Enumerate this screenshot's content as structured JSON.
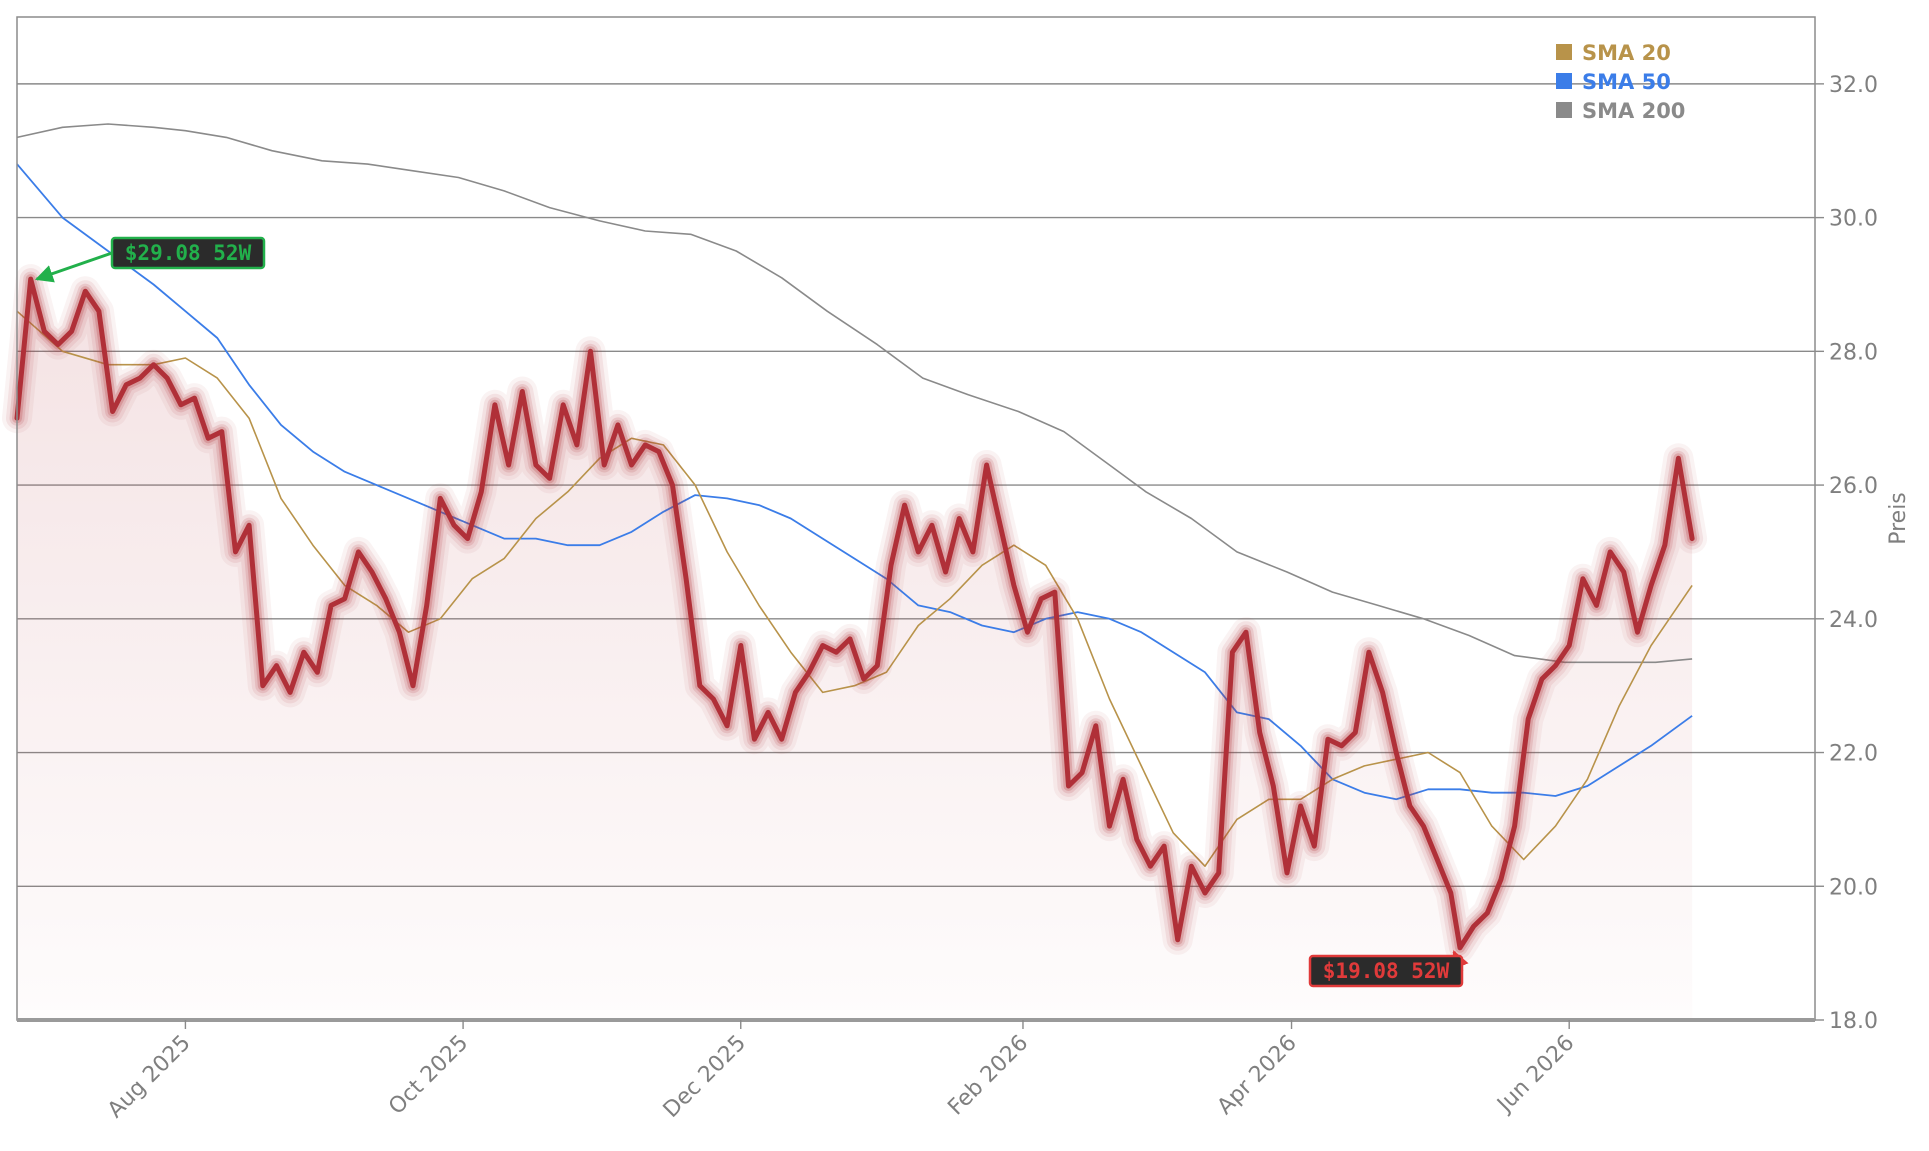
{
  "chart_data": {
    "type": "line",
    "title": "",
    "xlabel": "",
    "ylabel": "Preis",
    "ylim": [
      18.0,
      33.0
    ],
    "xlim": [
      "2025-06-25",
      "2026-07-25"
    ],
    "y_ticks": [
      "18.0",
      "20.0",
      "22.0",
      "24.0",
      "26.0",
      "28.0",
      "30.0",
      "32.0"
    ],
    "x_ticks": [
      {
        "date": "2025-08-01",
        "label": "Aug 2025"
      },
      {
        "date": "2025-10-01",
        "label": "Oct 2025"
      },
      {
        "date": "2025-12-01",
        "label": "Dec 2025"
      },
      {
        "date": "2026-02-01",
        "label": "Feb 2026"
      },
      {
        "date": "2026-04-01",
        "label": "Apr 2026"
      },
      {
        "date": "2026-06-01",
        "label": "Jun 2026"
      }
    ],
    "grid": "horizontal",
    "legend_position": "top-right",
    "legend": [
      {
        "name": "SMA 20",
        "color": "#b8934a"
      },
      {
        "name": "SMA 50",
        "color": "#3b7de8"
      },
      {
        "name": "SMA 200",
        "color": "#8a8a8a"
      }
    ],
    "price_color": "#b03038",
    "annotations": [
      {
        "text": "$29.08 52W",
        "date": "2025-06-28",
        "value": 29.08,
        "kind": "high",
        "color": "#22b04b"
      },
      {
        "text": "$19.08 52W",
        "date": "2026-05-08",
        "value": 19.08,
        "kind": "low",
        "color": "#e03a3a"
      }
    ],
    "series": [
      {
        "name": "Price",
        "points": [
          [
            "2025-06-25",
            27.0
          ],
          [
            "2025-06-28",
            29.08
          ],
          [
            "2025-07-01",
            28.3
          ],
          [
            "2025-07-04",
            28.1
          ],
          [
            "2025-07-07",
            28.3
          ],
          [
            "2025-07-10",
            28.9
          ],
          [
            "2025-07-13",
            28.6
          ],
          [
            "2025-07-16",
            27.1
          ],
          [
            "2025-07-19",
            27.5
          ],
          [
            "2025-07-22",
            27.6
          ],
          [
            "2025-07-25",
            27.8
          ],
          [
            "2025-07-28",
            27.6
          ],
          [
            "2025-07-31",
            27.2
          ],
          [
            "2025-08-03",
            27.3
          ],
          [
            "2025-08-06",
            26.7
          ],
          [
            "2025-08-09",
            26.8
          ],
          [
            "2025-08-12",
            25.0
          ],
          [
            "2025-08-15",
            25.4
          ],
          [
            "2025-08-18",
            23.0
          ],
          [
            "2025-08-21",
            23.3
          ],
          [
            "2025-08-24",
            22.9
          ],
          [
            "2025-08-27",
            23.5
          ],
          [
            "2025-08-30",
            23.2
          ],
          [
            "2025-09-02",
            24.2
          ],
          [
            "2025-09-05",
            24.3
          ],
          [
            "2025-09-08",
            25.0
          ],
          [
            "2025-09-11",
            24.7
          ],
          [
            "2025-09-14",
            24.3
          ],
          [
            "2025-09-17",
            23.8
          ],
          [
            "2025-09-20",
            23.0
          ],
          [
            "2025-09-23",
            24.2
          ],
          [
            "2025-09-26",
            25.8
          ],
          [
            "2025-09-29",
            25.4
          ],
          [
            "2025-10-02",
            25.2
          ],
          [
            "2025-10-05",
            25.9
          ],
          [
            "2025-10-08",
            27.2
          ],
          [
            "2025-10-11",
            26.3
          ],
          [
            "2025-10-14",
            27.4
          ],
          [
            "2025-10-17",
            26.3
          ],
          [
            "2025-10-20",
            26.1
          ],
          [
            "2025-10-23",
            27.2
          ],
          [
            "2025-10-26",
            26.6
          ],
          [
            "2025-10-29",
            28.0
          ],
          [
            "2025-11-01",
            26.3
          ],
          [
            "2025-11-04",
            26.9
          ],
          [
            "2025-11-07",
            26.3
          ],
          [
            "2025-11-10",
            26.6
          ],
          [
            "2025-11-13",
            26.5
          ],
          [
            "2025-11-16",
            26.0
          ],
          [
            "2025-11-19",
            24.6
          ],
          [
            "2025-11-22",
            23.0
          ],
          [
            "2025-11-25",
            22.8
          ],
          [
            "2025-11-28",
            22.4
          ],
          [
            "2025-12-01",
            23.6
          ],
          [
            "2025-12-04",
            22.2
          ],
          [
            "2025-12-07",
            22.6
          ],
          [
            "2025-12-10",
            22.2
          ],
          [
            "2025-12-13",
            22.9
          ],
          [
            "2025-12-16",
            23.2
          ],
          [
            "2025-12-19",
            23.6
          ],
          [
            "2025-12-22",
            23.5
          ],
          [
            "2025-12-25",
            23.7
          ],
          [
            "2025-12-28",
            23.1
          ],
          [
            "2025-12-31",
            23.3
          ],
          [
            "2026-01-03",
            24.8
          ],
          [
            "2026-01-06",
            25.7
          ],
          [
            "2026-01-09",
            25.0
          ],
          [
            "2026-01-12",
            25.4
          ],
          [
            "2026-01-15",
            24.7
          ],
          [
            "2026-01-18",
            25.5
          ],
          [
            "2026-01-21",
            25.0
          ],
          [
            "2026-01-24",
            26.3
          ],
          [
            "2026-01-27",
            25.4
          ],
          [
            "2026-01-30",
            24.5
          ],
          [
            "2026-02-02",
            23.8
          ],
          [
            "2026-02-05",
            24.3
          ],
          [
            "2026-02-08",
            24.4
          ],
          [
            "2026-02-11",
            21.5
          ],
          [
            "2026-02-14",
            21.7
          ],
          [
            "2026-02-17",
            22.4
          ],
          [
            "2026-02-20",
            20.9
          ],
          [
            "2026-02-23",
            21.6
          ],
          [
            "2026-02-26",
            20.7
          ],
          [
            "2026-03-01",
            20.3
          ],
          [
            "2026-03-04",
            20.6
          ],
          [
            "2026-03-07",
            19.2
          ],
          [
            "2026-03-10",
            20.3
          ],
          [
            "2026-03-13",
            19.9
          ],
          [
            "2026-03-16",
            20.2
          ],
          [
            "2026-03-19",
            23.5
          ],
          [
            "2026-03-22",
            23.8
          ],
          [
            "2026-03-25",
            22.3
          ],
          [
            "2026-03-28",
            21.5
          ],
          [
            "2026-03-31",
            20.2
          ],
          [
            "2026-04-03",
            21.2
          ],
          [
            "2026-04-06",
            20.6
          ],
          [
            "2026-04-09",
            22.2
          ],
          [
            "2026-04-12",
            22.1
          ],
          [
            "2026-04-15",
            22.3
          ],
          [
            "2026-04-18",
            23.5
          ],
          [
            "2026-04-21",
            22.9
          ],
          [
            "2026-04-24",
            22.0
          ],
          [
            "2026-04-27",
            21.2
          ],
          [
            "2026-04-30",
            20.9
          ],
          [
            "2026-05-03",
            20.4
          ],
          [
            "2026-05-06",
            19.9
          ],
          [
            "2026-05-08",
            19.08
          ],
          [
            "2026-05-11",
            19.4
          ],
          [
            "2026-05-14",
            19.6
          ],
          [
            "2026-05-17",
            20.1
          ],
          [
            "2026-05-20",
            20.9
          ],
          [
            "2026-05-23",
            22.5
          ],
          [
            "2026-05-26",
            23.1
          ],
          [
            "2026-05-29",
            23.3
          ],
          [
            "2026-06-01",
            23.6
          ],
          [
            "2026-06-04",
            24.6
          ],
          [
            "2026-06-07",
            24.2
          ],
          [
            "2026-06-10",
            25.0
          ],
          [
            "2026-06-13",
            24.7
          ],
          [
            "2026-06-16",
            23.8
          ],
          [
            "2026-06-19",
            24.5
          ],
          [
            "2026-06-22",
            25.1
          ],
          [
            "2026-06-25",
            26.4
          ],
          [
            "2026-06-28",
            25.2
          ]
        ]
      },
      {
        "name": "SMA 20",
        "points": [
          [
            "2025-06-25",
            28.6
          ],
          [
            "2025-07-05",
            28.0
          ],
          [
            "2025-07-15",
            27.8
          ],
          [
            "2025-07-25",
            27.8
          ],
          [
            "2025-08-01",
            27.9
          ],
          [
            "2025-08-08",
            27.6
          ],
          [
            "2025-08-15",
            27.0
          ],
          [
            "2025-08-22",
            25.8
          ],
          [
            "2025-08-29",
            25.1
          ],
          [
            "2025-09-05",
            24.5
          ],
          [
            "2025-09-12",
            24.2
          ],
          [
            "2025-09-19",
            23.8
          ],
          [
            "2025-09-26",
            24.0
          ],
          [
            "2025-10-03",
            24.6
          ],
          [
            "2025-10-10",
            24.9
          ],
          [
            "2025-10-17",
            25.5
          ],
          [
            "2025-10-24",
            25.9
          ],
          [
            "2025-10-31",
            26.4
          ],
          [
            "2025-11-07",
            26.7
          ],
          [
            "2025-11-14",
            26.6
          ],
          [
            "2025-11-21",
            26.0
          ],
          [
            "2025-11-28",
            25.0
          ],
          [
            "2025-12-05",
            24.2
          ],
          [
            "2025-12-12",
            23.5
          ],
          [
            "2025-12-19",
            22.9
          ],
          [
            "2025-12-26",
            23.0
          ],
          [
            "2026-01-02",
            23.2
          ],
          [
            "2026-01-09",
            23.9
          ],
          [
            "2026-01-16",
            24.3
          ],
          [
            "2026-01-23",
            24.8
          ],
          [
            "2026-01-30",
            25.1
          ],
          [
            "2026-02-06",
            24.8
          ],
          [
            "2026-02-13",
            24.0
          ],
          [
            "2026-02-20",
            22.8
          ],
          [
            "2026-02-27",
            21.8
          ],
          [
            "2026-03-06",
            20.8
          ],
          [
            "2026-03-13",
            20.3
          ],
          [
            "2026-03-20",
            21.0
          ],
          [
            "2026-03-27",
            21.3
          ],
          [
            "2026-04-03",
            21.3
          ],
          [
            "2026-04-10",
            21.6
          ],
          [
            "2026-04-17",
            21.8
          ],
          [
            "2026-04-24",
            21.9
          ],
          [
            "2026-05-01",
            22.0
          ],
          [
            "2026-05-08",
            21.7
          ],
          [
            "2026-05-15",
            20.9
          ],
          [
            "2026-05-22",
            20.4
          ],
          [
            "2026-05-29",
            20.9
          ],
          [
            "2026-06-05",
            21.6
          ],
          [
            "2026-06-12",
            22.7
          ],
          [
            "2026-06-19",
            23.6
          ],
          [
            "2026-06-28",
            24.5
          ]
        ]
      },
      {
        "name": "SMA 50",
        "points": [
          [
            "2025-06-25",
            30.8
          ],
          [
            "2025-07-05",
            30.0
          ],
          [
            "2025-07-15",
            29.5
          ],
          [
            "2025-07-25",
            29.0
          ],
          [
            "2025-08-01",
            28.6
          ],
          [
            "2025-08-08",
            28.2
          ],
          [
            "2025-08-15",
            27.5
          ],
          [
            "2025-08-22",
            26.9
          ],
          [
            "2025-08-29",
            26.5
          ],
          [
            "2025-09-05",
            26.2
          ],
          [
            "2025-09-12",
            26.0
          ],
          [
            "2025-09-19",
            25.8
          ],
          [
            "2025-09-26",
            25.6
          ],
          [
            "2025-10-03",
            25.4
          ],
          [
            "2025-10-10",
            25.2
          ],
          [
            "2025-10-17",
            25.2
          ],
          [
            "2025-10-24",
            25.1
          ],
          [
            "2025-10-31",
            25.1
          ],
          [
            "2025-11-07",
            25.3
          ],
          [
            "2025-11-14",
            25.6
          ],
          [
            "2025-11-21",
            25.85
          ],
          [
            "2025-11-28",
            25.8
          ],
          [
            "2025-12-05",
            25.7
          ],
          [
            "2025-12-12",
            25.5
          ],
          [
            "2025-12-19",
            25.2
          ],
          [
            "2025-12-26",
            24.9
          ],
          [
            "2026-01-02",
            24.6
          ],
          [
            "2026-01-09",
            24.2
          ],
          [
            "2026-01-16",
            24.1
          ],
          [
            "2026-01-23",
            23.9
          ],
          [
            "2026-01-30",
            23.8
          ],
          [
            "2026-02-06",
            24.0
          ],
          [
            "2026-02-13",
            24.1
          ],
          [
            "2026-02-20",
            24.0
          ],
          [
            "2026-02-27",
            23.8
          ],
          [
            "2026-03-06",
            23.5
          ],
          [
            "2026-03-13",
            23.2
          ],
          [
            "2026-03-20",
            22.6
          ],
          [
            "2026-03-27",
            22.5
          ],
          [
            "2026-04-03",
            22.1
          ],
          [
            "2026-04-10",
            21.6
          ],
          [
            "2026-04-17",
            21.4
          ],
          [
            "2026-04-24",
            21.3
          ],
          [
            "2026-05-01",
            21.45
          ],
          [
            "2026-05-08",
            21.45
          ],
          [
            "2026-05-15",
            21.4
          ],
          [
            "2026-05-22",
            21.4
          ],
          [
            "2026-05-29",
            21.35
          ],
          [
            "2026-06-05",
            21.5
          ],
          [
            "2026-06-12",
            21.8
          ],
          [
            "2026-06-19",
            22.1
          ],
          [
            "2026-06-28",
            22.55
          ]
        ]
      },
      {
        "name": "SMA 200",
        "points": [
          [
            "2025-06-25",
            31.2
          ],
          [
            "2025-07-05",
            31.35
          ],
          [
            "2025-07-15",
            31.4
          ],
          [
            "2025-07-25",
            31.35
          ],
          [
            "2025-08-01",
            31.3
          ],
          [
            "2025-08-10",
            31.2
          ],
          [
            "2025-08-20",
            31.0
          ],
          [
            "2025-08-31",
            30.85
          ],
          [
            "2025-09-10",
            30.8
          ],
          [
            "2025-09-20",
            30.7
          ],
          [
            "2025-09-30",
            30.6
          ],
          [
            "2025-10-10",
            30.4
          ],
          [
            "2025-10-20",
            30.15
          ],
          [
            "2025-10-31",
            29.95
          ],
          [
            "2025-11-10",
            29.8
          ],
          [
            "2025-11-20",
            29.75
          ],
          [
            "2025-11-30",
            29.5
          ],
          [
            "2025-12-10",
            29.1
          ],
          [
            "2025-12-20",
            28.6
          ],
          [
            "2025-12-31",
            28.1
          ],
          [
            "2026-01-10",
            27.6
          ],
          [
            "2026-01-20",
            27.35
          ],
          [
            "2026-01-31",
            27.1
          ],
          [
            "2026-02-10",
            26.8
          ],
          [
            "2026-02-20",
            26.3
          ],
          [
            "2026-02-28",
            25.9
          ],
          [
            "2026-03-10",
            25.5
          ],
          [
            "2026-03-20",
            25.0
          ],
          [
            "2026-03-31",
            24.7
          ],
          [
            "2026-04-10",
            24.4
          ],
          [
            "2026-04-20",
            24.2
          ],
          [
            "2026-04-30",
            24.0
          ],
          [
            "2026-05-10",
            23.75
          ],
          [
            "2026-05-20",
            23.45
          ],
          [
            "2026-05-31",
            23.35
          ],
          [
            "2026-06-10",
            23.35
          ],
          [
            "2026-06-20",
            23.35
          ],
          [
            "2026-06-28",
            23.4
          ]
        ]
      }
    ]
  }
}
